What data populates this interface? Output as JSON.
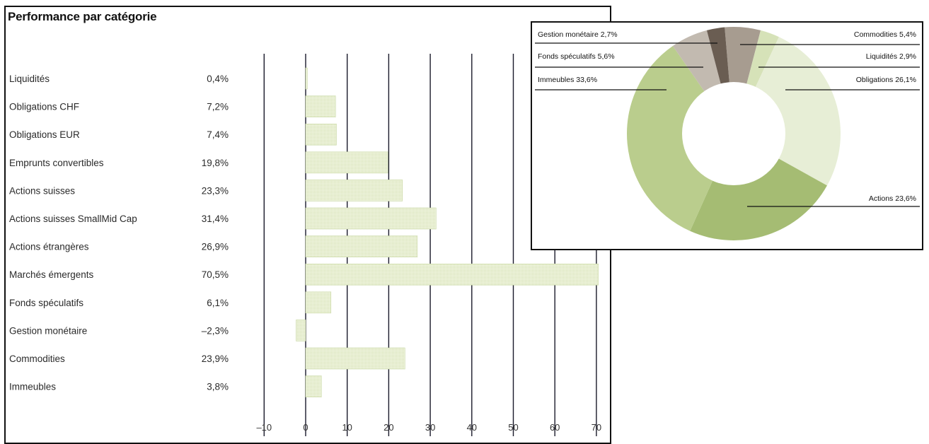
{
  "chart_data": [
    {
      "type": "bar",
      "orientation": "horizontal",
      "title": "Performance par catégorie",
      "categories": [
        "Liquidités",
        "Obligations CHF",
        "Obligations EUR",
        "Emprunts convertibles",
        "Actions suisses",
        "Actions suisses SmallMid Cap",
        "Actions étrangères",
        "Marchés émergents",
        "Fonds spéculatifs",
        "Gestion monétaire",
        "Commodities",
        "Immeubles"
      ],
      "values": [
        0.4,
        7.2,
        7.4,
        19.8,
        23.3,
        31.4,
        26.9,
        70.5,
        6.1,
        -2.3,
        23.9,
        3.8
      ],
      "value_labels": [
        "0,4%",
        "7,2%",
        "7,4%",
        "19,8%",
        "23,3%",
        "31,4%",
        "26,9%",
        "70,5%",
        "6,1%",
        "–2,3%",
        "23,9%",
        "3,8%"
      ],
      "xticks": [
        -10,
        0,
        10,
        20,
        30,
        40,
        50,
        60,
        70
      ],
      "xtick_labels": [
        "–10",
        "0",
        "10",
        "20",
        "30",
        "40",
        "50",
        "60",
        "70"
      ],
      "xlim": [
        -10,
        70
      ],
      "grid": true,
      "colors": {
        "bar": "#e4edcc",
        "bar_stroke": "#c9d8a4",
        "grid": "#1a1a2a"
      }
    },
    {
      "type": "pie",
      "donut": true,
      "slices": [
        {
          "label": "Commodities 5,4%",
          "value": 5.4,
          "color": "#a79c90"
        },
        {
          "label": "Liquidités 2,9%",
          "value": 2.9,
          "color": "#d6e2b8"
        },
        {
          "label": "Obligations 26,1%",
          "value": 26.1,
          "color": "#e7eed6"
        },
        {
          "label": "Actions 23,6%",
          "value": 23.6,
          "color": "#a5bc73"
        },
        {
          "label": "Immeubles 33,6%",
          "value": 33.6,
          "color": "#bacd8d"
        },
        {
          "label": "Fonds spéculatifs 5,6%",
          "value": 5.6,
          "color": "#c2bab0"
        },
        {
          "label": "Gestion monétaire 2,7%",
          "value": 2.7,
          "color": "#6a5d52"
        }
      ]
    }
  ]
}
